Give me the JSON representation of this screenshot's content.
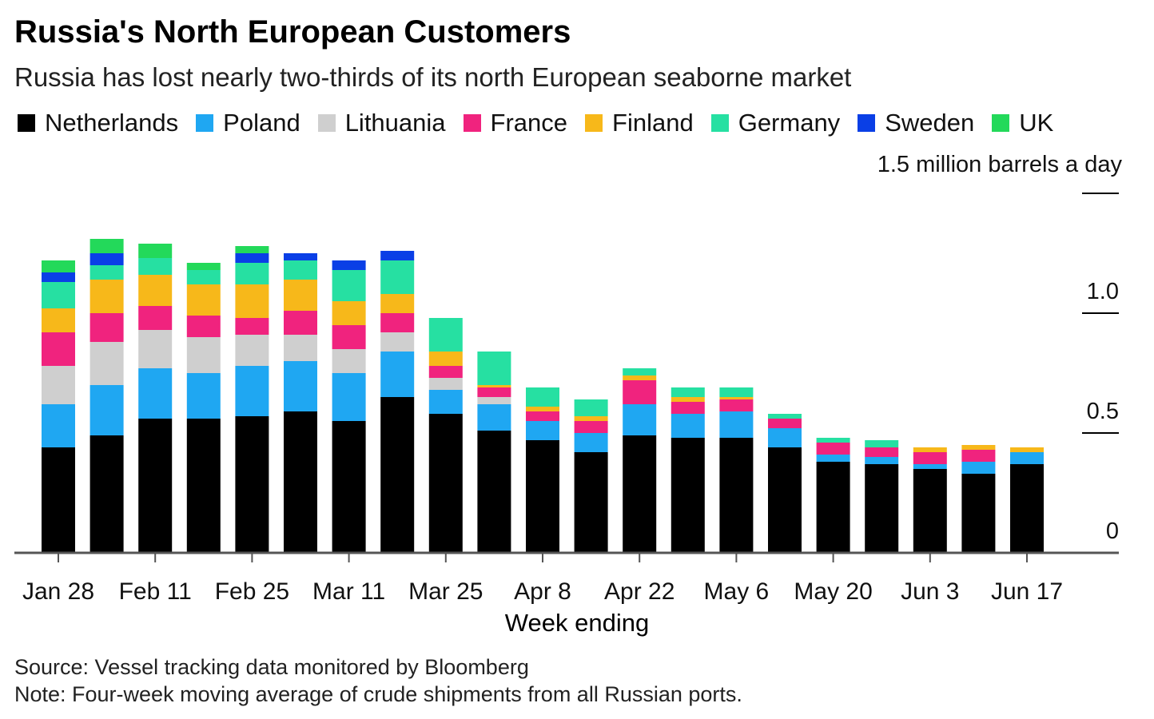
{
  "header": {
    "title": "Russia's North European Customers",
    "subtitle": "Russia has lost nearly two-thirds of its north European seaborne market"
  },
  "footer": {
    "source": "Source: Vessel tracking data monitored by Bloomberg",
    "note": "Note: Four-week moving average of crude shipments from all Russian ports."
  },
  "chart_data": {
    "type": "bar",
    "stacked": true,
    "title": "Russia's North European Customers",
    "subtitle": "Russia has lost nearly two-thirds of its north European seaborne market",
    "xlabel": "Week ending",
    "ylabel": "1.5 million barrels a day",
    "ylim": [
      0,
      1.5
    ],
    "yticks": [
      {
        "value": 0,
        "label": "0"
      },
      {
        "value": 0.5,
        "label": "0.5"
      },
      {
        "value": 1.0,
        "label": "1.0"
      },
      {
        "value": 1.5,
        "label": ""
      }
    ],
    "grid": false,
    "legend_position": "top",
    "categories": [
      "Jan 28",
      "Feb 4",
      "Feb 11",
      "Feb 18",
      "Feb 25",
      "Mar 4",
      "Mar 11",
      "Mar 18",
      "Mar 25",
      "Apr 1",
      "Apr 8",
      "Apr 15",
      "Apr 22",
      "Apr 29",
      "May 6",
      "May 13",
      "May 20",
      "May 27",
      "Jun 3",
      "Jun 10",
      "Jun 17"
    ],
    "tick_labels": [
      {
        "index": 0,
        "label": "Jan 28"
      },
      {
        "index": 2,
        "label": "Feb 11"
      },
      {
        "index": 4,
        "label": "Feb 25"
      },
      {
        "index": 6,
        "label": "Mar 11"
      },
      {
        "index": 8,
        "label": "Mar 25"
      },
      {
        "index": 10,
        "label": "Apr 8"
      },
      {
        "index": 12,
        "label": "Apr 22"
      },
      {
        "index": 14,
        "label": "May 6"
      },
      {
        "index": 16,
        "label": "May 20"
      },
      {
        "index": 18,
        "label": "Jun 3"
      },
      {
        "index": 20,
        "label": "Jun 17"
      }
    ],
    "series": [
      {
        "name": "Netherlands",
        "color": "#000000",
        "values": [
          0.44,
          0.49,
          0.56,
          0.56,
          0.57,
          0.59,
          0.55,
          0.65,
          0.58,
          0.51,
          0.47,
          0.42,
          0.49,
          0.48,
          0.48,
          0.44,
          0.38,
          0.37,
          0.35,
          0.33,
          0.37
        ]
      },
      {
        "name": "Poland",
        "color": "#1FA7F2",
        "values": [
          0.18,
          0.21,
          0.21,
          0.19,
          0.21,
          0.21,
          0.2,
          0.19,
          0.1,
          0.11,
          0.08,
          0.08,
          0.13,
          0.1,
          0.11,
          0.08,
          0.03,
          0.03,
          0.02,
          0.05,
          0.05
        ]
      },
      {
        "name": "Lithuania",
        "color": "#CFCFCF",
        "values": [
          0.16,
          0.18,
          0.16,
          0.15,
          0.13,
          0.11,
          0.1,
          0.08,
          0.05,
          0.03,
          0.0,
          0.0,
          0.0,
          0.0,
          0.0,
          0.0,
          0.0,
          0.0,
          0.0,
          0.0,
          0.0
        ]
      },
      {
        "name": "France",
        "color": "#F0237E",
        "values": [
          0.14,
          0.12,
          0.1,
          0.09,
          0.07,
          0.1,
          0.1,
          0.08,
          0.05,
          0.04,
          0.04,
          0.05,
          0.1,
          0.05,
          0.05,
          0.04,
          0.05,
          0.04,
          0.05,
          0.05,
          0.0
        ]
      },
      {
        "name": "Finland",
        "color": "#F7B81A",
        "values": [
          0.1,
          0.14,
          0.13,
          0.13,
          0.14,
          0.13,
          0.1,
          0.08,
          0.06,
          0.01,
          0.02,
          0.02,
          0.02,
          0.02,
          0.01,
          0.0,
          0.0,
          0.0,
          0.02,
          0.02,
          0.02
        ]
      },
      {
        "name": "Germany",
        "color": "#26E0A2",
        "values": [
          0.11,
          0.06,
          0.07,
          0.06,
          0.09,
          0.08,
          0.13,
          0.14,
          0.14,
          0.14,
          0.08,
          0.07,
          0.03,
          0.04,
          0.04,
          0.02,
          0.02,
          0.03,
          0.0,
          0.0,
          0.0
        ]
      },
      {
        "name": "Sweden",
        "color": "#0A3FE6",
        "values": [
          0.04,
          0.05,
          0.0,
          0.0,
          0.04,
          0.03,
          0.04,
          0.04,
          0.0,
          0.0,
          0.0,
          0.0,
          0.0,
          0.0,
          0.0,
          0.0,
          0.0,
          0.0,
          0.0,
          0.0,
          0.0
        ]
      },
      {
        "name": "UK",
        "color": "#23D95A",
        "values": [
          0.05,
          0.06,
          0.06,
          0.03,
          0.03,
          0.0,
          0.0,
          0.0,
          0.0,
          0.0,
          0.0,
          0.0,
          0.0,
          0.0,
          0.0,
          0.0,
          0.0,
          0.0,
          0.0,
          0.0,
          0.0
        ]
      }
    ]
  }
}
